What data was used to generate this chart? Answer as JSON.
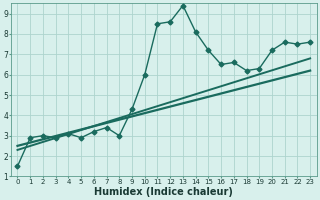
{
  "title": "",
  "xlabel": "Humidex (Indice chaleur)",
  "background_color": "#d8f0ec",
  "grid_color": "#aed4ce",
  "line_color": "#1a6b5e",
  "xlim": [
    -0.5,
    23.5
  ],
  "ylim": [
    1,
    9.5
  ],
  "x_data": [
    0,
    1,
    2,
    3,
    4,
    5,
    6,
    7,
    8,
    9,
    10,
    11,
    12,
    13,
    14,
    15,
    16,
    17,
    18,
    19,
    20,
    21,
    22,
    23
  ],
  "y_data": [
    1.5,
    2.9,
    3.0,
    2.9,
    3.1,
    2.9,
    3.2,
    3.4,
    3.0,
    4.3,
    6.0,
    8.5,
    8.6,
    9.4,
    8.1,
    7.2,
    6.5,
    6.6,
    6.2,
    6.3,
    7.2,
    7.6,
    7.5,
    7.6
  ],
  "trend1_x": [
    0,
    23
  ],
  "trend1_y": [
    2.5,
    6.2
  ],
  "trend2_x": [
    0,
    23
  ],
  "trend2_y": [
    2.3,
    6.8
  ],
  "marker": "D",
  "marker_size": 2.5,
  "line_width": 1.0,
  "xtick_fontsize": 5.0,
  "ytick_fontsize": 5.5,
  "xlabel_fontsize": 7.0
}
